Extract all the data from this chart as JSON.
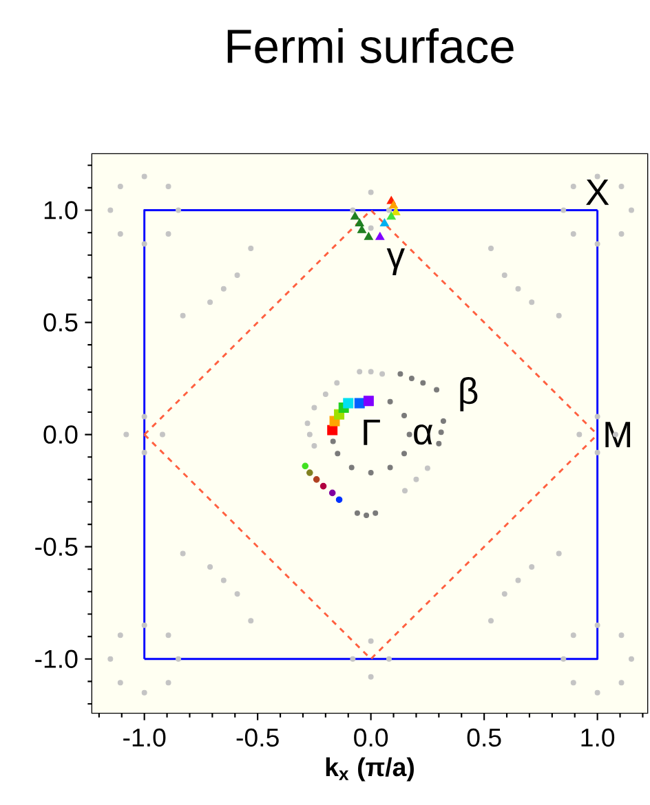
{
  "chart_data": {
    "type": "scatter",
    "title": "Fermi surface",
    "xlabel": "k$_{x}$ (π/a)",
    "xlim": [
      -1.23,
      1.22
    ],
    "ylim": [
      -1.24,
      1.25
    ],
    "xticks": [
      {
        "value": -1.2,
        "label": null
      },
      {
        "value": -1.1,
        "label": null
      },
      {
        "value": -1.0,
        "label": "-1.0"
      },
      {
        "value": -0.9,
        "label": null
      },
      {
        "value": -0.8,
        "label": null
      },
      {
        "value": -0.7,
        "label": null
      },
      {
        "value": -0.6,
        "label": null
      },
      {
        "value": -0.5,
        "label": "-0.5"
      },
      {
        "value": -0.4,
        "label": null
      },
      {
        "value": -0.3,
        "label": null
      },
      {
        "value": -0.2,
        "label": null
      },
      {
        "value": -0.1,
        "label": null
      },
      {
        "value": 0.0,
        "label": "0.0"
      },
      {
        "value": 0.1,
        "label": null
      },
      {
        "value": 0.2,
        "label": null
      },
      {
        "value": 0.3,
        "label": null
      },
      {
        "value": 0.4,
        "label": null
      },
      {
        "value": 0.5,
        "label": "0.5"
      },
      {
        "value": 0.6,
        "label": null
      },
      {
        "value": 0.7,
        "label": null
      },
      {
        "value": 0.8,
        "label": null
      },
      {
        "value": 0.9,
        "label": null
      },
      {
        "value": 1.0,
        "label": "1.0"
      },
      {
        "value": 1.1,
        "label": null
      },
      {
        "value": 1.2,
        "label": null
      }
    ],
    "yticks": [
      {
        "value": -1.2,
        "label": null
      },
      {
        "value": -1.1,
        "label": null
      },
      {
        "value": -1.0,
        "label": "-1.0"
      },
      {
        "value": -0.9,
        "label": null
      },
      {
        "value": -0.8,
        "label": null
      },
      {
        "value": -0.7,
        "label": null
      },
      {
        "value": -0.6,
        "label": null
      },
      {
        "value": -0.5,
        "label": "-0.5"
      },
      {
        "value": -0.4,
        "label": null
      },
      {
        "value": -0.3,
        "label": null
      },
      {
        "value": -0.2,
        "label": null
      },
      {
        "value": -0.1,
        "label": null
      },
      {
        "value": 0.0,
        "label": "0.0"
      },
      {
        "value": 0.1,
        "label": null
      },
      {
        "value": 0.2,
        "label": null
      },
      {
        "value": 0.3,
        "label": null
      },
      {
        "value": 0.4,
        "label": null
      },
      {
        "value": 0.5,
        "label": "0.5"
      },
      {
        "value": 0.6,
        "label": null
      },
      {
        "value": 0.7,
        "label": null
      },
      {
        "value": 0.8,
        "label": null
      },
      {
        "value": 0.9,
        "label": null
      },
      {
        "value": 1.0,
        "label": "1.0"
      },
      {
        "value": 1.1,
        "label": null
      },
      {
        "value": 1.2,
        "label": null
      }
    ],
    "series": [
      {
        "type": "line",
        "line_style": "solid",
        "color": "#0000ff",
        "x": [
          -1,
          -1,
          1
        ],
        "values": [
          -1,
          1,
          1
        ]
      },
      {
        "type": "line",
        "line_style": "solid",
        "color": "#0000ff",
        "x": [
          -1,
          1,
          1
        ],
        "values": [
          -1,
          -1,
          1
        ]
      },
      {
        "type": "line",
        "line_style": "dashed",
        "color": "#ff6040",
        "x": [
          -1,
          0,
          1
        ],
        "values": [
          0,
          1,
          0
        ]
      },
      {
        "type": "line",
        "line_style": "dashed",
        "color": "#ff6040",
        "x": [
          -1,
          0,
          1
        ],
        "values": [
          0,
          -1,
          0
        ]
      },
      {
        "marker": "circle",
        "color": "#c4c4c4",
        "x": [
          1.15,
          1.106,
          1.0,
          0.894,
          0.85,
          0.894,
          1.0,
          1.106,
          -0.85,
          -0.894,
          -1.0,
          -1.106,
          -1.15,
          -1.106,
          -1.0,
          -0.894,
          1.15,
          1.106,
          1.0,
          0.894,
          0.85,
          0.894,
          1.0,
          1.106,
          -0.85,
          -0.894,
          -1.0,
          -1.106,
          -1.15,
          -1.106,
          -1.0,
          -0.894,
          0.53,
          0.59,
          0.65,
          0.71,
          0.83,
          -0.53,
          -0.59,
          -0.65,
          -0.71,
          -0.83,
          0.53,
          0.59,
          0.65,
          0.71,
          0.83,
          -0.53,
          -0.59,
          -0.65,
          -0.71,
          -0.83,
          1.08,
          1.0,
          0.92,
          1.0,
          -1.08,
          -1.0,
          -0.92,
          -1.0,
          0.08,
          0.0,
          -0.08,
          0.0,
          0.08,
          0.0,
          -0.08,
          0.0,
          -0.28,
          -0.27,
          -0.25,
          -0.25,
          -0.2,
          -0.15,
          0.0,
          -0.05,
          0.05,
          0.15,
          0.2,
          0.25
        ],
        "values": [
          1.0,
          1.106,
          1.15,
          1.106,
          1.0,
          0.894,
          0.85,
          0.894,
          1.0,
          1.106,
          1.15,
          1.106,
          1.0,
          0.894,
          0.85,
          0.894,
          -1.0,
          -0.894,
          -0.85,
          -0.894,
          -1.0,
          -1.106,
          -1.15,
          -1.106,
          -1.0,
          -0.894,
          -0.85,
          -0.894,
          -1.0,
          -1.106,
          -1.15,
          -1.106,
          0.83,
          0.71,
          0.65,
          0.59,
          0.53,
          0.83,
          0.71,
          0.65,
          0.59,
          0.53,
          -0.83,
          -0.71,
          -0.65,
          -0.59,
          -0.53,
          -0.83,
          -0.71,
          -0.65,
          -0.59,
          -0.53,
          0.0,
          0.08,
          0.0,
          -0.08,
          0.0,
          0.08,
          0.0,
          -0.08,
          1.0,
          1.08,
          1.0,
          0.92,
          -1.0,
          -0.92,
          -1.0,
          -1.08,
          0.05,
          0.0,
          -0.05,
          0.12,
          0.18,
          0.23,
          0.28,
          0.28,
          0.27,
          -0.25,
          -0.2,
          -0.15
        ]
      },
      {
        "marker": "circle",
        "color": "#7a7a7a",
        "x": [
          0.085,
          0.147,
          0.17,
          0.147,
          0.085,
          0.0,
          -0.085,
          -0.147,
          -0.167,
          0.13,
          0.18,
          0.23,
          0.29,
          0.32,
          0.31,
          0.3,
          -0.06,
          -0.02,
          0.02
        ],
        "values": [
          0.147,
          0.085,
          0.0,
          -0.085,
          -0.147,
          -0.17,
          -0.147,
          -0.085,
          -0.03,
          0.27,
          0.25,
          0.23,
          0.2,
          0.06,
          0.01,
          -0.04,
          -0.35,
          -0.36,
          -0.35
        ]
      },
      {
        "marker": "square",
        "colors": [
          "#ff0000",
          "#ffa500",
          "#a0e000",
          "#20d020",
          "#00e0f0",
          "#0060ff",
          "#8000ff"
        ],
        "x": [
          -0.17,
          -0.16,
          -0.14,
          -0.12,
          -0.1,
          -0.05,
          -0.01
        ],
        "values": [
          0.02,
          0.06,
          0.09,
          0.12,
          0.14,
          0.14,
          0.15
        ]
      },
      {
        "marker": "circle",
        "colors": [
          "#40e020",
          "#808020",
          "#b04020",
          "#b00040",
          "#8000a0",
          "#0030ff"
        ],
        "x": [
          -0.29,
          -0.27,
          -0.24,
          -0.21,
          -0.17,
          -0.14
        ],
        "values": [
          -0.14,
          -0.17,
          -0.2,
          -0.23,
          -0.26,
          -0.29
        ]
      },
      {
        "marker": "triangle",
        "colors": [
          "#ff2000",
          "#ffa000",
          "#e0e000",
          "#40e040",
          "#00b0f0",
          "#8000ff",
          "#208020",
          "#208020",
          "#208020",
          "#208020"
        ],
        "x": [
          0.09,
          0.1,
          0.11,
          0.09,
          0.06,
          0.04,
          -0.07,
          -0.05,
          -0.04,
          -0.01
        ],
        "values": [
          1.04,
          1.02,
          0.99,
          0.97,
          0.94,
          0.88,
          0.97,
          0.94,
          0.91,
          0.88
        ]
      }
    ],
    "annotations": [
      "Γ",
      "α",
      "β",
      "γ",
      "X",
      "M"
    ]
  }
}
